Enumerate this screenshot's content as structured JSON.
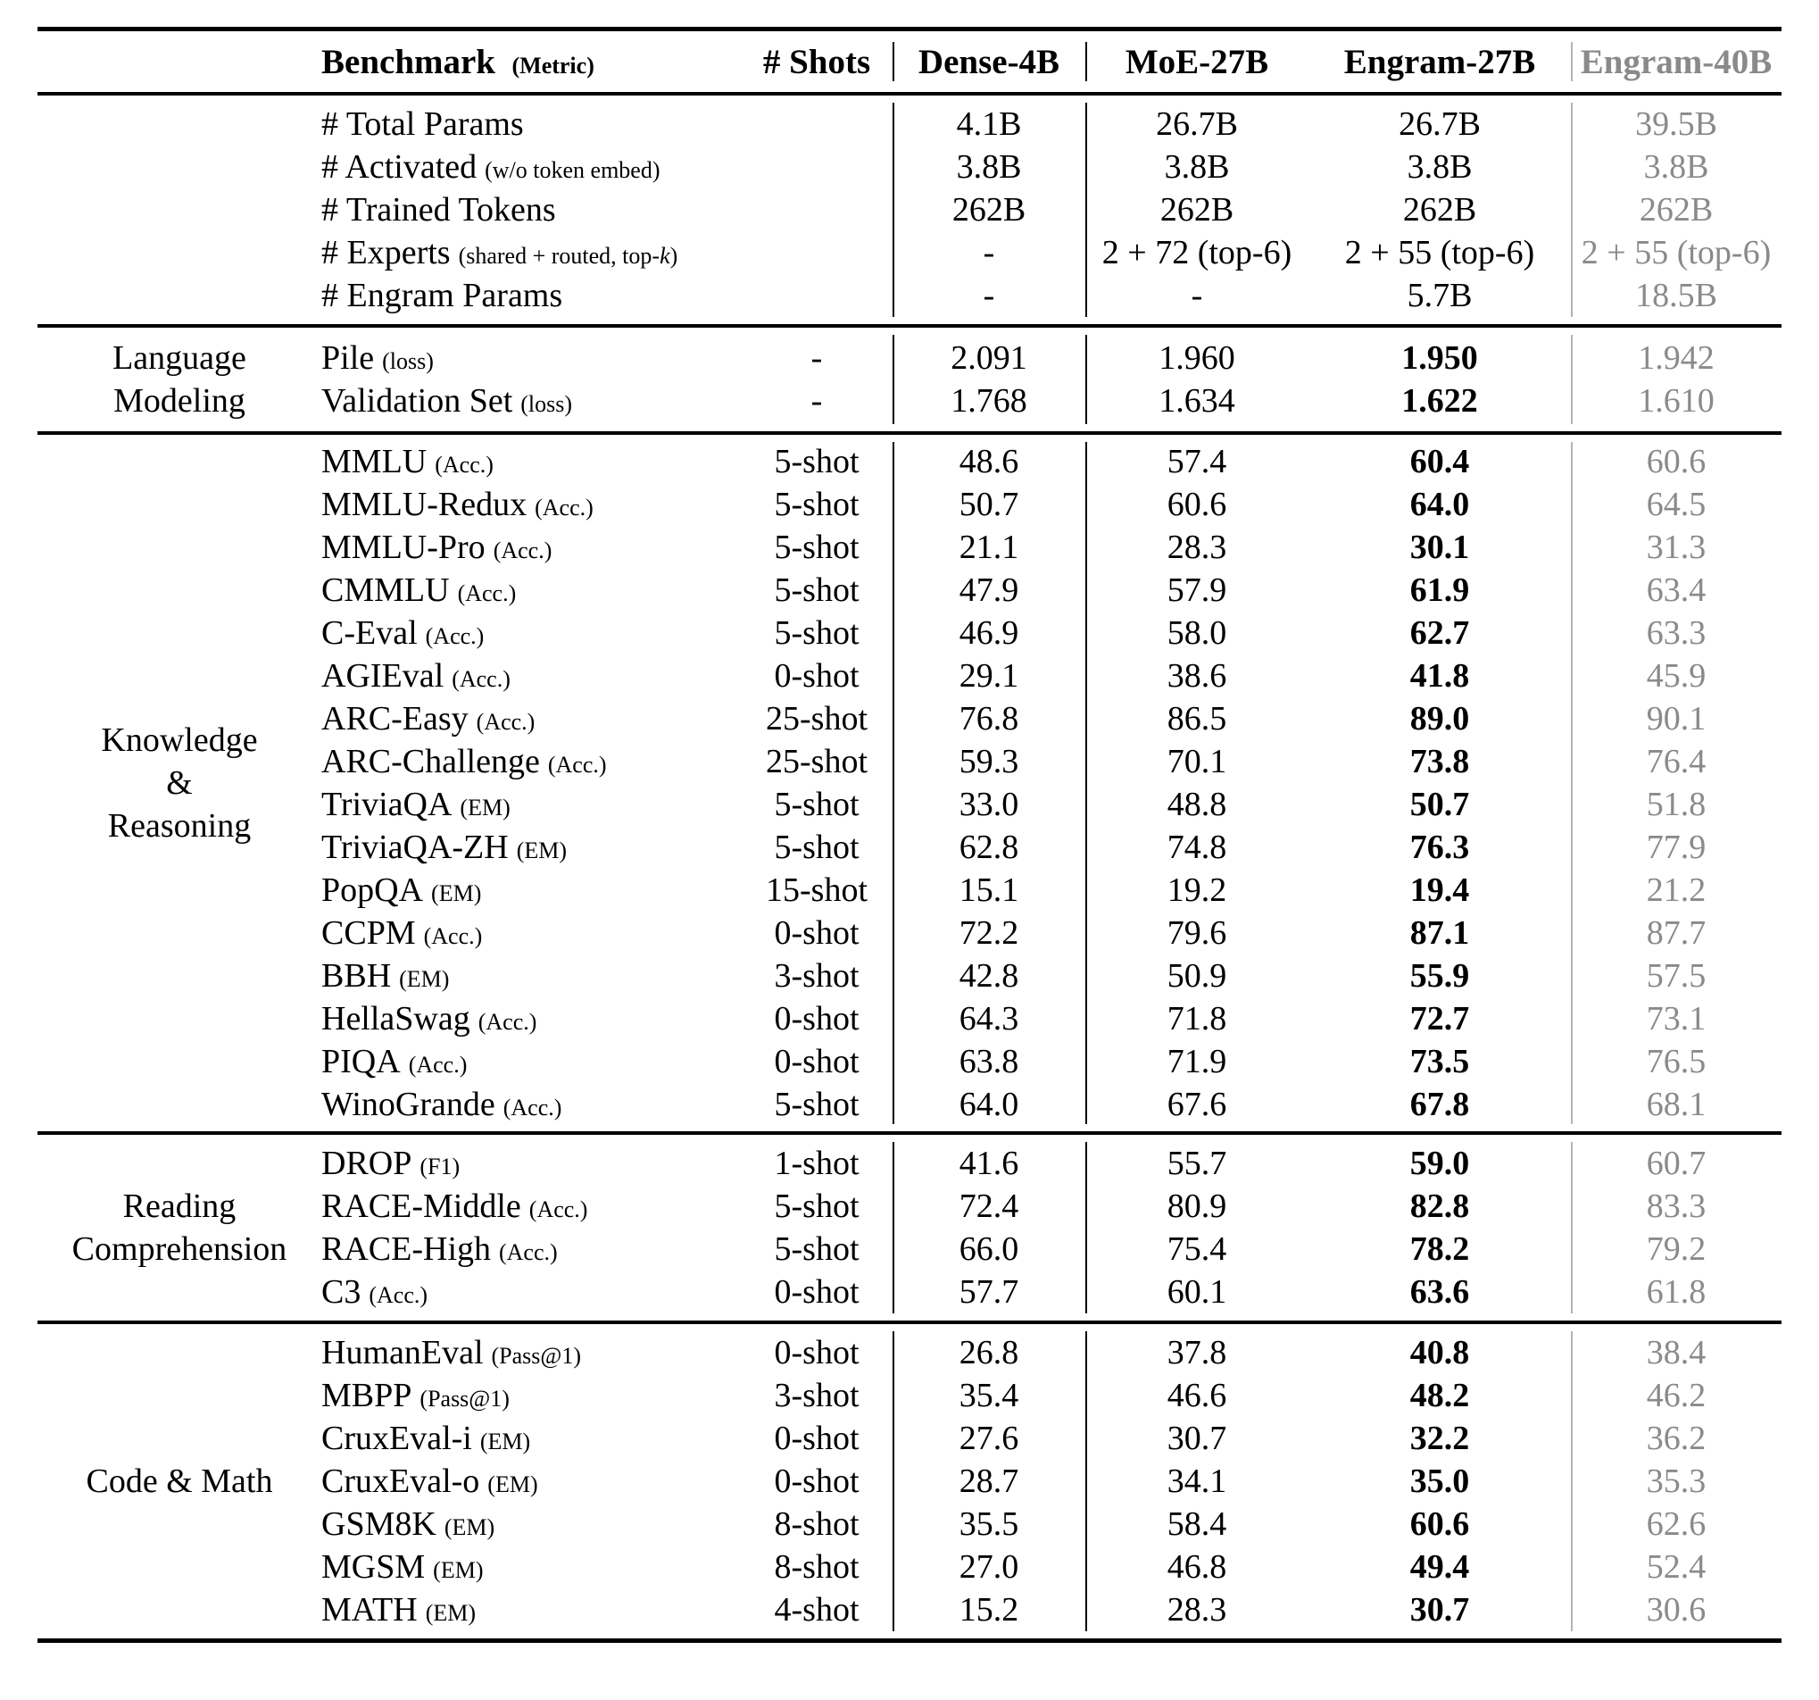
{
  "colors": {
    "text": "#000000",
    "gray_text": "#8a8a8a",
    "gray_rule": "#b3b3b3"
  },
  "header": {
    "benchmark": "Benchmark",
    "metric_note": "(Metric)",
    "shots": "# Shots",
    "models": [
      "Dense-4B",
      "MoE-27B",
      "Engram-27B",
      "Engram-40B"
    ]
  },
  "params_rows": [
    {
      "label": "# Total Params",
      "note": "",
      "shots": "",
      "values": [
        "4.1B",
        "26.7B",
        "26.7B",
        "39.5B"
      ]
    },
    {
      "label": "# Activated",
      "note": "(w/o token embed)",
      "shots": "",
      "values": [
        "3.8B",
        "3.8B",
        "3.8B",
        "3.8B"
      ]
    },
    {
      "label": "# Trained Tokens",
      "note": "",
      "shots": "",
      "values": [
        "262B",
        "262B",
        "262B",
        "262B"
      ]
    },
    {
      "label": "# Experts",
      "note": "(shared + routed, top-k)",
      "italic_k": true,
      "shots": "",
      "values": [
        "-",
        "2 + 72 (top-6)",
        "2 + 55 (top-6)",
        "2 + 55 (top-6)"
      ]
    },
    {
      "label": "# Engram Params",
      "note": "",
      "shots": "",
      "values": [
        "-",
        "-",
        "5.7B",
        "18.5B"
      ]
    }
  ],
  "sections": [
    {
      "group_lines": [
        "Language",
        "Modeling"
      ],
      "rows": [
        {
          "label": "Pile",
          "note": "(loss)",
          "shots": "-",
          "values": [
            "2.091",
            "1.960",
            "1.950",
            "1.942"
          ]
        },
        {
          "label": "Validation Set",
          "note": "(loss)",
          "shots": "-",
          "values": [
            "1.768",
            "1.634",
            "1.622",
            "1.610"
          ]
        }
      ]
    },
    {
      "group_lines": [
        "Knowledge",
        "&",
        "Reasoning"
      ],
      "rows": [
        {
          "label": "MMLU",
          "note": "(Acc.)",
          "shots": "5-shot",
          "values": [
            "48.6",
            "57.4",
            "60.4",
            "60.6"
          ]
        },
        {
          "label": "MMLU-Redux",
          "note": "(Acc.)",
          "shots": "5-shot",
          "values": [
            "50.7",
            "60.6",
            "64.0",
            "64.5"
          ]
        },
        {
          "label": "MMLU-Pro",
          "note": "(Acc.)",
          "shots": "5-shot",
          "values": [
            "21.1",
            "28.3",
            "30.1",
            "31.3"
          ]
        },
        {
          "label": "CMMLU",
          "note": "(Acc.)",
          "shots": "5-shot",
          "values": [
            "47.9",
            "57.9",
            "61.9",
            "63.4"
          ]
        },
        {
          "label": "C-Eval",
          "note": "(Acc.)",
          "shots": "5-shot",
          "values": [
            "46.9",
            "58.0",
            "62.7",
            "63.3"
          ]
        },
        {
          "label": "AGIEval",
          "note": "(Acc.)",
          "shots": "0-shot",
          "values": [
            "29.1",
            "38.6",
            "41.8",
            "45.9"
          ]
        },
        {
          "label": "ARC-Easy",
          "note": "(Acc.)",
          "shots": "25-shot",
          "values": [
            "76.8",
            "86.5",
            "89.0",
            "90.1"
          ]
        },
        {
          "label": "ARC-Challenge",
          "note": "(Acc.)",
          "shots": "25-shot",
          "values": [
            "59.3",
            "70.1",
            "73.8",
            "76.4"
          ]
        },
        {
          "label": "TriviaQA",
          "note": "(EM)",
          "shots": "5-shot",
          "values": [
            "33.0",
            "48.8",
            "50.7",
            "51.8"
          ]
        },
        {
          "label": "TriviaQA-ZH",
          "note": "(EM)",
          "shots": "5-shot",
          "values": [
            "62.8",
            "74.8",
            "76.3",
            "77.9"
          ]
        },
        {
          "label": "PopQA",
          "note": "(EM)",
          "shots": "15-shot",
          "values": [
            "15.1",
            "19.2",
            "19.4",
            "21.2"
          ]
        },
        {
          "label": "CCPM",
          "note": "(Acc.)",
          "shots": "0-shot",
          "values": [
            "72.2",
            "79.6",
            "87.1",
            "87.7"
          ]
        },
        {
          "label": "BBH",
          "note": "(EM)",
          "shots": "3-shot",
          "values": [
            "42.8",
            "50.9",
            "55.9",
            "57.5"
          ]
        },
        {
          "label": "HellaSwag",
          "note": "(Acc.)",
          "shots": "0-shot",
          "values": [
            "64.3",
            "71.8",
            "72.7",
            "73.1"
          ]
        },
        {
          "label": "PIQA",
          "note": "(Acc.)",
          "shots": "0-shot",
          "values": [
            "63.8",
            "71.9",
            "73.5",
            "76.5"
          ]
        },
        {
          "label": "WinoGrande",
          "note": "(Acc.)",
          "shots": "5-shot",
          "values": [
            "64.0",
            "67.6",
            "67.8",
            "68.1"
          ]
        }
      ]
    },
    {
      "group_lines": [
        "Reading",
        "Comprehension"
      ],
      "rows": [
        {
          "label": "DROP",
          "note": "(F1)",
          "shots": "1-shot",
          "values": [
            "41.6",
            "55.7",
            "59.0",
            "60.7"
          ]
        },
        {
          "label": "RACE-Middle",
          "note": "(Acc.)",
          "shots": "5-shot",
          "values": [
            "72.4",
            "80.9",
            "82.8",
            "83.3"
          ]
        },
        {
          "label": "RACE-High",
          "note": "(Acc.)",
          "shots": "5-shot",
          "values": [
            "66.0",
            "75.4",
            "78.2",
            "79.2"
          ]
        },
        {
          "label": "C3",
          "note": "(Acc.)",
          "shots": "0-shot",
          "values": [
            "57.7",
            "60.1",
            "63.6",
            "61.8"
          ]
        }
      ]
    },
    {
      "group_lines": [
        "Code & Math"
      ],
      "rows": [
        {
          "label": "HumanEval",
          "note": "(Pass@1)",
          "shots": "0-shot",
          "values": [
            "26.8",
            "37.8",
            "40.8",
            "38.4"
          ]
        },
        {
          "label": "MBPP",
          "note": "(Pass@1)",
          "shots": "3-shot",
          "values": [
            "35.4",
            "46.6",
            "48.2",
            "46.2"
          ]
        },
        {
          "label": "CruxEval-i",
          "note": "(EM)",
          "shots": "0-shot",
          "values": [
            "27.6",
            "30.7",
            "32.2",
            "36.2"
          ]
        },
        {
          "label": "CruxEval-o",
          "note": "(EM)",
          "shots": "0-shot",
          "values": [
            "28.7",
            "34.1",
            "35.0",
            "35.3"
          ]
        },
        {
          "label": "GSM8K",
          "note": "(EM)",
          "shots": "8-shot",
          "values": [
            "35.5",
            "58.4",
            "60.6",
            "62.6"
          ]
        },
        {
          "label": "MGSM",
          "note": "(EM)",
          "shots": "8-shot",
          "values": [
            "27.0",
            "46.8",
            "49.4",
            "52.4"
          ]
        },
        {
          "label": "MATH",
          "note": "(EM)",
          "shots": "4-shot",
          "values": [
            "15.2",
            "28.3",
            "30.7",
            "30.6"
          ]
        }
      ]
    }
  ]
}
